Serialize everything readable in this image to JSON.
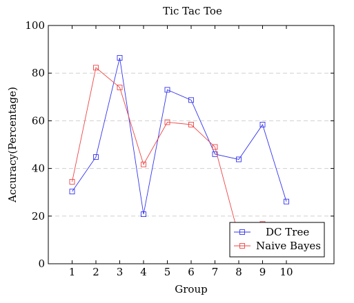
{
  "chart_data": {
    "type": "line",
    "title": "Tic Tac Toe",
    "xlabel": "Group",
    "ylabel": "Accuracy(Percentage)",
    "x": [
      1,
      2,
      3,
      4,
      5,
      6,
      7,
      8,
      9,
      10
    ],
    "xlim": [
      0,
      12
    ],
    "ylim": [
      0,
      100
    ],
    "yticks": [
      0,
      20,
      40,
      60,
      80,
      100
    ],
    "grid": "horizontal dashed",
    "legend_position": "bottom-right",
    "series": [
      {
        "name": "DC Tree",
        "color": "#3333ee",
        "marker": "square",
        "values": [
          30.3,
          44.8,
          86.4,
          20.8,
          73.0,
          68.7,
          46.0,
          43.8,
          58.4,
          26.1
        ]
      },
      {
        "name": "Naive Bayes",
        "color": "#ee4444",
        "marker": "square",
        "values": [
          34.4,
          82.3,
          74.0,
          41.7,
          59.4,
          58.4,
          49.0,
          11.5,
          16.7,
          null
        ]
      }
    ]
  }
}
